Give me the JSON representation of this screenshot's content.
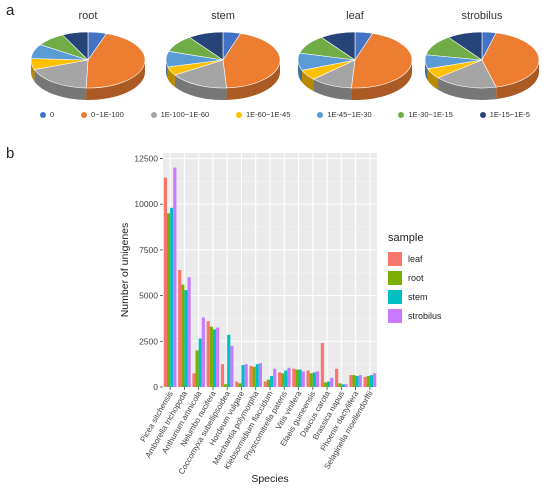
{
  "panel_a_label": "a",
  "panel_b_label": "b",
  "chart_data": [
    {
      "type": "pie",
      "subplots": [
        {
          "title": "root",
          "values": [
            5,
            43,
            18,
            6,
            8,
            8,
            7
          ]
        },
        {
          "title": "stem",
          "values": [
            5,
            44,
            17,
            5,
            9,
            10,
            10
          ]
        },
        {
          "title": "leaf",
          "values": [
            5,
            46,
            12,
            6,
            10,
            11,
            10
          ]
        },
        {
          "title": "strobilus",
          "values": [
            4,
            42,
            18,
            6,
            8,
            12,
            10
          ]
        }
      ],
      "legend": {
        "entries": [
          "0",
          "0~1E-100",
          "1E-100~1E-60",
          "1E-60~1E-45",
          "1E-45~1E-30",
          "1E-30~1E-15",
          "1E-15~1E-5"
        ],
        "colors": [
          "#4472c4",
          "#ed7d31",
          "#a5a5a5",
          "#ffc000",
          "#5b9bd5",
          "#70ad47",
          "#264478"
        ],
        "placement": "bottom"
      }
    },
    {
      "type": "bar",
      "xlabel": "Species",
      "ylabel": "Number of unigenes",
      "ylim": [
        0,
        12500
      ],
      "yticks": [
        "0",
        "2500",
        "5000",
        "7500",
        "10000",
        "12500"
      ],
      "ytick_values": [
        0,
        2500,
        5000,
        7500,
        10000,
        12500
      ],
      "grid": true,
      "legend_title": "sample",
      "legend_placement": "right",
      "categories": [
        "Picea sitchensis",
        "Amborella trichopoda",
        "Anthurium amnicola",
        "Nelumbo nucifera",
        "Coccomyxa subellipsoidea",
        "Hordeum vulgare",
        "Marchantia polymorpha",
        "Klebsormidium flaccidum",
        "Physcomitrella patens",
        "Vitis vinifera",
        "Elaeis guineensis",
        "Daucus carota",
        "Brassica napus",
        "Phoenix dactylifera",
        "Selaginella moellendorffii"
      ],
      "series": [
        {
          "name": "leaf",
          "color": "#f8766d",
          "values": [
            11450,
            6400,
            750,
            3600,
            1250,
            300,
            1150,
            300,
            800,
            1000,
            900,
            2400,
            1000,
            650,
            550
          ]
        },
        {
          "name": "root",
          "color": "#7cae00",
          "values": [
            9500,
            5600,
            2000,
            3300,
            150,
            200,
            1100,
            400,
            750,
            950,
            750,
            250,
            200,
            650,
            600
          ]
        },
        {
          "name": "stem",
          "color": "#00bfc4",
          "values": [
            9800,
            5300,
            2650,
            3150,
            2850,
            1200,
            1250,
            600,
            900,
            950,
            800,
            300,
            150,
            600,
            650
          ]
        },
        {
          "name": "strobilus",
          "color": "#c77cff",
          "values": [
            12000,
            6000,
            3800,
            3250,
            2250,
            1250,
            1300,
            1000,
            1050,
            850,
            850,
            500,
            150,
            650,
            750
          ]
        }
      ]
    }
  ]
}
